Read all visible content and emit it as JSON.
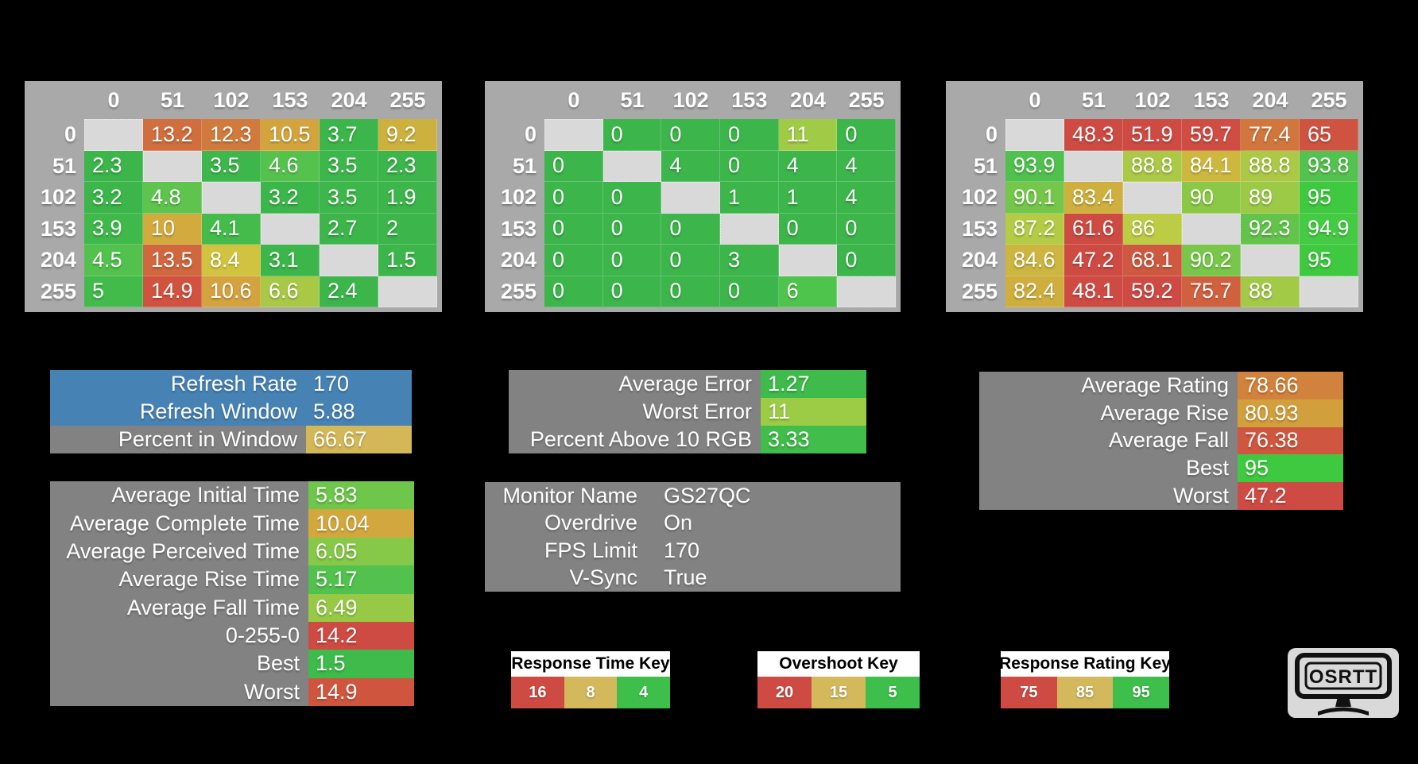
{
  "colors": {
    "background": "#000000",
    "table_header_bg": "#a9a9a9",
    "diagonal_bg": "#d9d9d9",
    "panel_bg": "#828282",
    "refresh_blue": "#4682b4",
    "key_red": "#ce4b44",
    "key_tan": "#d4b85c",
    "key_green": "#3ebe4b"
  },
  "chart_data": [
    {
      "type": "heatmap",
      "name": "response-times",
      "x_labels": [
        0,
        51,
        102,
        153,
        204,
        255
      ],
      "y_labels": [
        0,
        51,
        102,
        153,
        204,
        255
      ],
      "values": [
        [
          null,
          13.2,
          12.3,
          10.5,
          3.7,
          9.2
        ],
        [
          2.3,
          null,
          3.5,
          4.6,
          3.5,
          2.3
        ],
        [
          3.2,
          4.8,
          null,
          3.2,
          3.5,
          1.9
        ],
        [
          3.9,
          10,
          4.1,
          null,
          2.7,
          2
        ],
        [
          4.5,
          13.5,
          8.4,
          3.1,
          null,
          1.5
        ],
        [
          5,
          14.9,
          10.6,
          6.6,
          2.4,
          null
        ]
      ],
      "cell_colors": [
        [
          null,
          "#d06e3e",
          "#d07b3d",
          "#d3a43e",
          "#3cb54b",
          "#ccb13f"
        ],
        [
          "#3cb54b",
          null,
          "#3db74b",
          "#55c24e",
          "#3db74b",
          "#3cb54b"
        ],
        [
          "#3cb54b",
          "#5ec44d",
          null,
          "#3cb54b",
          "#3db74b",
          "#3cb54b"
        ],
        [
          "#40b94b",
          "#d3aa3e",
          "#44bb4b",
          null,
          "#3cb54b",
          "#3cb54b"
        ],
        [
          "#52c14e",
          "#d0673f",
          "#d1c340",
          "#3cb54b",
          null,
          "#3cb54b"
        ],
        [
          "#42bb4b",
          "#d1523f",
          "#d4a23e",
          "#a8c846",
          "#3cb54b",
          null
        ]
      ]
    },
    {
      "type": "heatmap",
      "name": "overshoot",
      "x_labels": [
        0,
        51,
        102,
        153,
        204,
        255
      ],
      "y_labels": [
        0,
        51,
        102,
        153,
        204,
        255
      ],
      "values": [
        [
          null,
          0,
          0,
          0,
          11,
          0
        ],
        [
          0,
          null,
          4,
          0,
          4,
          4
        ],
        [
          0,
          0,
          null,
          1,
          1,
          4
        ],
        [
          0,
          0,
          0,
          null,
          0,
          0
        ],
        [
          0,
          0,
          0,
          3,
          null,
          0
        ],
        [
          0,
          0,
          0,
          0,
          6,
          null
        ]
      ],
      "cell_colors": [
        [
          null,
          "#3cb54b",
          "#3cb54b",
          "#3cb54b",
          "#a0cb46",
          "#3cb54b"
        ],
        [
          "#3cb54b",
          null,
          "#3cb54b",
          "#3cb54b",
          "#3cb54b",
          "#3cb54b"
        ],
        [
          "#3cb54b",
          "#3cb54b",
          null,
          "#3cb54b",
          "#3cb54b",
          "#3cb54b"
        ],
        [
          "#3cb54b",
          "#3cb54b",
          "#3cb54b",
          null,
          "#3cb54b",
          "#3cb54b"
        ],
        [
          "#3cb54b",
          "#3cb54b",
          "#3cb54b",
          "#3cb54b",
          null,
          "#3cb54b"
        ],
        [
          "#3cb54b",
          "#3cb54b",
          "#3cb54b",
          "#3cb54b",
          "#4ec44d",
          null
        ]
      ]
    },
    {
      "type": "heatmap",
      "name": "response-ratings",
      "x_labels": [
        0,
        51,
        102,
        153,
        204,
        255
      ],
      "y_labels": [
        0,
        51,
        102,
        153,
        204,
        255
      ],
      "values": [
        [
          null,
          48.3,
          51.9,
          59.7,
          77.4,
          65
        ],
        [
          93.9,
          null,
          88.8,
          84.1,
          88.8,
          93.8
        ],
        [
          90.1,
          83.4,
          null,
          90,
          89,
          95
        ],
        [
          87.2,
          61.6,
          86,
          null,
          92.3,
          94.9
        ],
        [
          84.6,
          47.2,
          68.1,
          90.2,
          null,
          95
        ],
        [
          82.4,
          48.1,
          59.2,
          75.7,
          88,
          null
        ]
      ],
      "cell_colors": [
        [
          null,
          "#ce4b44",
          "#ce4b44",
          "#cf4d43",
          "#d1763d",
          "#cf5341"
        ],
        [
          "#50c14e",
          null,
          "#abc946",
          "#cdb83f",
          "#abc946",
          "#53c24e"
        ],
        [
          "#74c74b",
          "#cfb03e",
          null,
          "#8cc847",
          "#9cca47",
          "#3fc940"
        ],
        [
          "#b3cb45",
          "#ce4b43",
          "#bccc44",
          null,
          "#63c44c",
          "#45ca44"
        ],
        [
          "#ccb540",
          "#ce4b44",
          "#cf5940",
          "#78c74a",
          null,
          "#3fc940"
        ],
        [
          "#cfae3e",
          "#ce4b44",
          "#ce4b44",
          "#d1613e",
          "#a3ca46",
          null
        ]
      ]
    }
  ],
  "panels": [
    {
      "name": "refresh",
      "rows": [
        {
          "label": "Refresh Rate",
          "value": "170",
          "row_bg": "#4682b4"
        },
        {
          "label": "Refresh Window",
          "value": "5.88",
          "row_bg": "#4682b4"
        },
        {
          "label": "Percent in Window",
          "value": "66.67",
          "value_bg": "#d4b757"
        }
      ]
    },
    {
      "name": "error",
      "rows": [
        {
          "label": "Average Error",
          "value": "1.27",
          "value_bg": "#3ebb4b"
        },
        {
          "label": "Worst Error",
          "value": "11",
          "value_bg": "#9ccb46"
        },
        {
          "label": "Percent Above 10 RGB",
          "value": "3.33",
          "value_bg": "#40bd4b"
        }
      ]
    },
    {
      "name": "rating",
      "rows": [
        {
          "label": "Average Rating",
          "value": "78.66",
          "value_bg": "#d1823c"
        },
        {
          "label": "Average Rise",
          "value": "80.93",
          "value_bg": "#d29f3d"
        },
        {
          "label": "Average Fall",
          "value": "76.38",
          "value_bg": "#d0573f"
        },
        {
          "label": "Best",
          "value": "95",
          "value_bg": "#3fc940"
        },
        {
          "label": "Worst",
          "value": "47.2",
          "value_bg": "#ce4b44"
        }
      ]
    },
    {
      "name": "times",
      "rows": [
        {
          "label": "Average Initial Time",
          "value": "5.83",
          "value_bg": "#6ec64b"
        },
        {
          "label": "Average Complete Time",
          "value": "10.04",
          "value_bg": "#d2a83e"
        },
        {
          "label": "Average Perceived Time",
          "value": "6.05",
          "value_bg": "#86c847"
        },
        {
          "label": "Average Rise Time",
          "value": "5.17",
          "value_bg": "#52c14e"
        },
        {
          "label": "Average Fall Time",
          "value": "6.49",
          "value_bg": "#97c947"
        },
        {
          "label": "0-255-0",
          "value": "14.2",
          "value_bg": "#ce4b43"
        },
        {
          "label": "Best",
          "value": "1.5",
          "value_bg": "#3ebb4b"
        },
        {
          "label": "Worst",
          "value": "14.9",
          "value_bg": "#d0553f"
        }
      ]
    },
    {
      "name": "monitor",
      "rows": [
        {
          "label": "Monitor Name",
          "value": "GS27QC"
        },
        {
          "label": "Overdrive",
          "value": "On"
        },
        {
          "label": "FPS Limit",
          "value": "170"
        },
        {
          "label": "V-Sync",
          "value": "True"
        }
      ]
    }
  ],
  "keys": [
    {
      "title": "Response Time Key",
      "stops": [
        {
          "value": "16",
          "color": "#ce4b44"
        },
        {
          "value": "8",
          "color": "#d4b85c"
        },
        {
          "value": "4",
          "color": "#3ebe4b"
        }
      ]
    },
    {
      "title": "Overshoot Key",
      "stops": [
        {
          "value": "20",
          "color": "#ce4b44"
        },
        {
          "value": "15",
          "color": "#d4b85c"
        },
        {
          "value": "5",
          "color": "#3ebe4b"
        }
      ]
    },
    {
      "title": "Response Rating Key",
      "stops": [
        {
          "value": "75",
          "color": "#ce4b44"
        },
        {
          "value": "85",
          "color": "#d4b85c"
        },
        {
          "value": "95",
          "color": "#3ebe4b"
        }
      ]
    }
  ],
  "logo": {
    "text": "OSRTT"
  }
}
